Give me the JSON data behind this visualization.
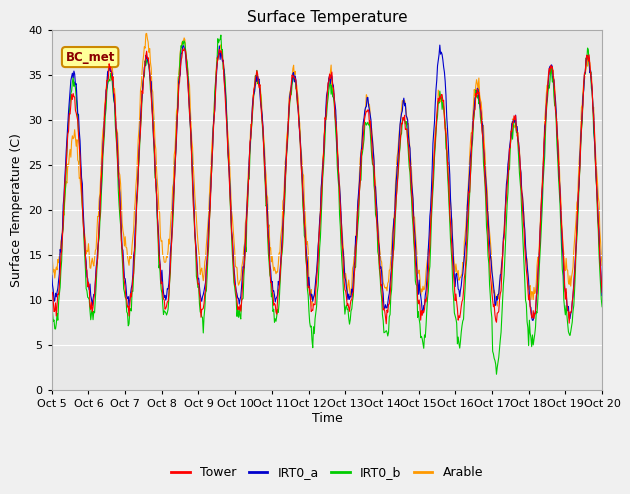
{
  "title": "Surface Temperature",
  "ylabel": "Surface Temperature (C)",
  "xlabel": "Time",
  "annotation": "BC_met",
  "ylim": [
    0,
    40
  ],
  "background_color": "#e8e8e8",
  "fig_background": "#f0f0f0",
  "legend_labels": [
    "Tower",
    "IRT0_a",
    "IRT0_b",
    "Arable"
  ],
  "legend_colors": [
    "#ff0000",
    "#0000cc",
    "#00cc00",
    "#ff9900"
  ],
  "tick_labels": [
    "Oct 5",
    "Oct 6",
    "Oct 7",
    "Oct 8",
    "Oct 9",
    "Oct 10",
    "Oct 11",
    "Oct 12",
    "Oct 13",
    "Oct 14",
    "Oct 15",
    "Oct 16",
    "Oct 17",
    "Oct 18",
    "Oct 19",
    "Oct 20"
  ],
  "n_days": 15,
  "pts_per_day": 48
}
